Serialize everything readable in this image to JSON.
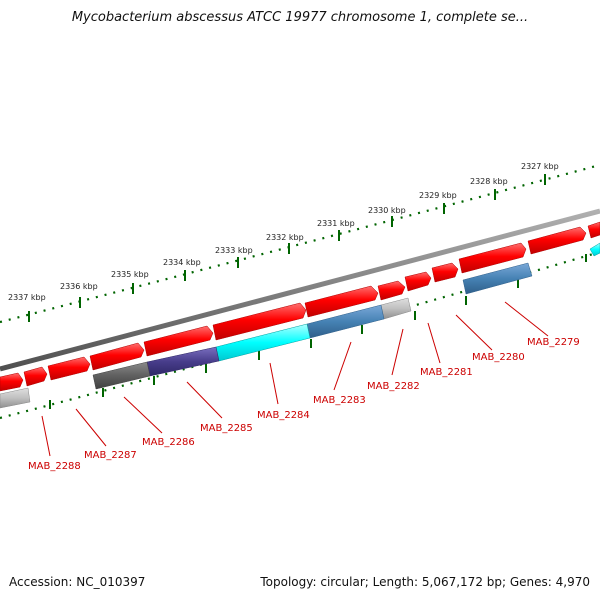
{
  "title": "Mycobacterium abscessus ATCC 19977 chromosome 1, complete se...",
  "footer": {
    "accession": "Accession: NC_010397",
    "summary": "Topology: circular; Length: 5,067,172 bp; Genes: 4,970"
  },
  "colors": {
    "gene_forward": "#ff0000",
    "backbone": "#808080",
    "tick": "#006400",
    "label": "#cc0000"
  },
  "ruler": {
    "unit": "kbp",
    "ticks": [
      {
        "kbp": 2327,
        "label": "2327 kbp"
      },
      {
        "kbp": 2328,
        "label": "2328 kbp"
      },
      {
        "kbp": 2329,
        "label": "2329 kbp"
      },
      {
        "kbp": 2330,
        "label": "2330 kbp"
      },
      {
        "kbp": 2331,
        "label": "2331 kbp"
      },
      {
        "kbp": 2332,
        "label": "2332 kbp"
      },
      {
        "kbp": 2333,
        "label": "2333 kbp"
      },
      {
        "kbp": 2334,
        "label": "2334 kbp"
      },
      {
        "kbp": 2335,
        "label": "2335 kbp"
      },
      {
        "kbp": 2336,
        "label": "2336 kbp"
      },
      {
        "kbp": 2337,
        "label": "2337 kbp"
      }
    ]
  },
  "gene_labels": [
    {
      "name": "MAB_2279",
      "color": "steelblue"
    },
    {
      "name": "MAB_2280",
      "color": "red"
    },
    {
      "name": "MAB_2281",
      "color": "red"
    },
    {
      "name": "MAB_2282",
      "color": "silver"
    },
    {
      "name": "MAB_2283",
      "color": "steelblue"
    },
    {
      "name": "MAB_2284",
      "color": "cyan"
    },
    {
      "name": "MAB_2285",
      "color": "darkslateblue"
    },
    {
      "name": "MAB_2286",
      "color": "dimgray"
    },
    {
      "name": "MAB_2287",
      "color": "red"
    },
    {
      "name": "MAB_2288",
      "color": "silver"
    }
  ]
}
